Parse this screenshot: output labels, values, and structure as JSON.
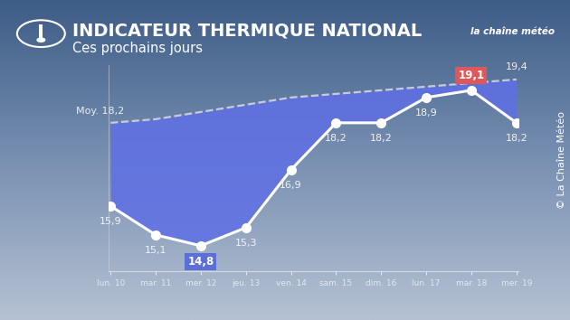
{
  "chart_data": {
    "type": "line",
    "title": "INDICATEUR THERMIQUE NATIONAL",
    "subtitle": "Ces prochains jours",
    "logo": "la chaîne météo",
    "source": "© La Chaîne Météo",
    "categories": [
      "lun. 10",
      "mar. 11",
      "mer. 12",
      "jeu. 13",
      "ven. 14",
      "sam. 15",
      "dim. 16",
      "lun. 17",
      "mar. 18",
      "mer. 19"
    ],
    "series": [
      {
        "color": "#ffffff",
        "marker": "circle",
        "line_style": "solid",
        "values": [
          15.9,
          15.1,
          14.8,
          15.3,
          16.9,
          18.2,
          18.2,
          18.9,
          19.1,
          18.2
        ],
        "value_labels": [
          "15,9",
          "15,1",
          "14,8",
          "15,3",
          "16,9",
          "18,2",
          "18,2",
          "18,9",
          "19,1",
          "18,2"
        ]
      },
      {
        "color": "#c9ccd8",
        "line_style": "dashed",
        "values": [
          18.2,
          18.3,
          18.5,
          18.7,
          18.9,
          19.0,
          19.1,
          19.2,
          19.3,
          19.4
        ],
        "value_labels": [
          "Moy. 18,2",
          null,
          null,
          null,
          null,
          null,
          null,
          null,
          null,
          "19,4"
        ]
      }
    ],
    "ylim": [
      14.1,
      19.8
    ],
    "yticks": [],
    "data_labels": true,
    "tick_labels": "x",
    "grid": false
  }
}
